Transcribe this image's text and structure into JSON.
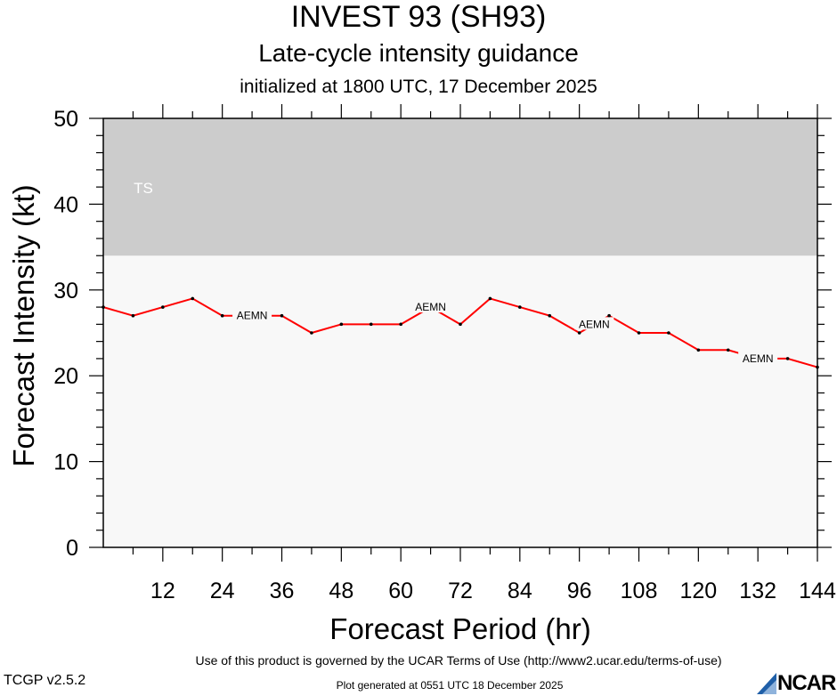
{
  "header": {
    "title": "INVEST 93 (SH93)",
    "subtitle": "Late-cycle intensity guidance",
    "init_line": "initialized at 1800 UTC, 17 December 2025"
  },
  "chart_data": {
    "type": "line",
    "xlabel": "Forecast Period (hr)",
    "ylabel": "Forecast Intensity (kt)",
    "xlim": [
      0,
      144
    ],
    "ylim": [
      0,
      50
    ],
    "x_ticks": [
      12,
      24,
      36,
      48,
      60,
      72,
      84,
      96,
      108,
      120,
      132,
      144
    ],
    "y_ticks": [
      0,
      10,
      20,
      30,
      40,
      50
    ],
    "grid": false,
    "bands": [
      {
        "label": "TS",
        "from": 34,
        "to": 50,
        "color": "#cccccc"
      }
    ],
    "plot_background": "#f8f8f8",
    "series": [
      {
        "name": "AEMN",
        "color": "#ff0000",
        "x": [
          0,
          6,
          12,
          18,
          24,
          30,
          36,
          42,
          48,
          54,
          60,
          66,
          72,
          78,
          84,
          90,
          96,
          102,
          108,
          114,
          120,
          126,
          132,
          138,
          144
        ],
        "y": [
          28,
          27,
          28,
          29,
          27,
          27,
          27,
          25,
          26,
          26,
          26,
          28,
          26,
          29,
          28,
          27,
          25,
          27,
          25,
          25,
          23,
          23,
          22,
          22,
          21
        ],
        "label_positions": [
          30,
          66,
          99,
          132
        ]
      }
    ]
  },
  "footer": {
    "terms": "Use of this product is governed by the UCAR Terms of Use (http://www2.ucar.edu/terms-of-use)",
    "version": "TCGP v2.5.2",
    "generated": "Plot generated at 0551 UTC   18 December 2025",
    "logo_text": "NCAR"
  },
  "colors": {
    "line": "#ff0000",
    "band": "#cccccc",
    "plot_bg": "#f8f8f8",
    "logo_blue": "#1f5fa8"
  }
}
